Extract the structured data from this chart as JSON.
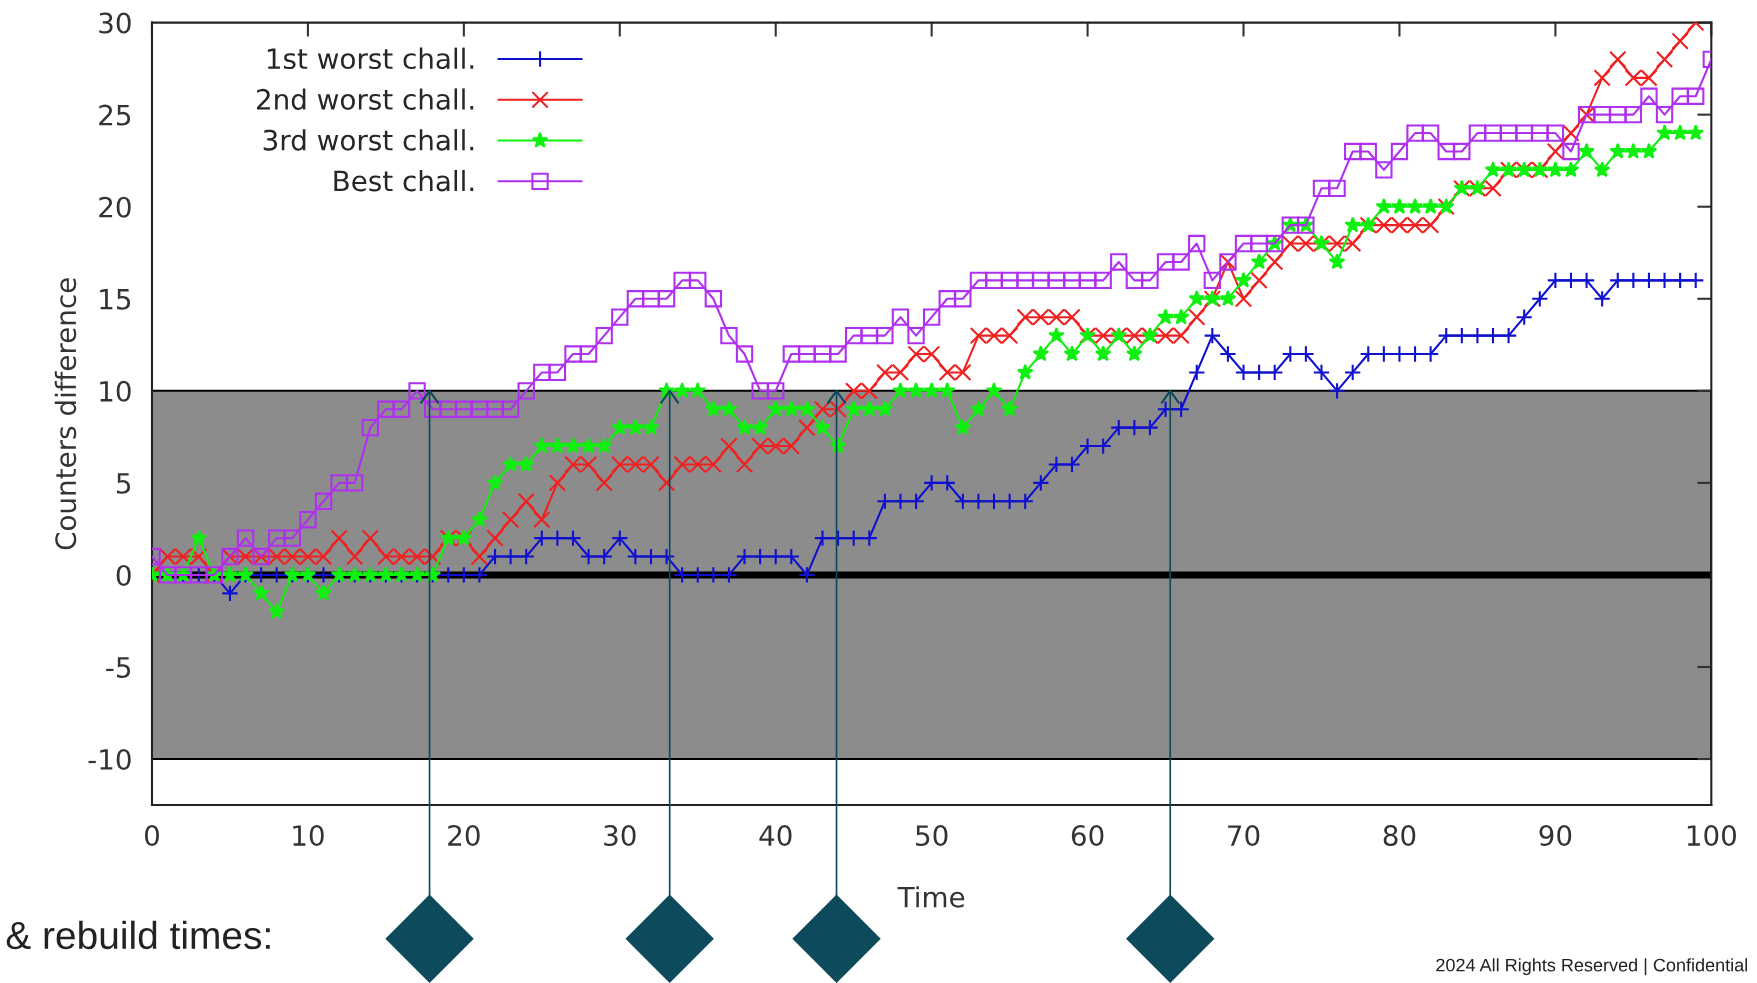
{
  "chart_data": {
    "type": "line",
    "xlabel": "Time",
    "ylabel": "Counters difference",
    "x": [
      0,
      1,
      2,
      3,
      4,
      5,
      6,
      7,
      8,
      9,
      10,
      11,
      12,
      13,
      14,
      15,
      16,
      17,
      18,
      19,
      20,
      21,
      22,
      23,
      24,
      25,
      26,
      27,
      28,
      29,
      30,
      31,
      32,
      33,
      34,
      35,
      36,
      37,
      38,
      39,
      40,
      41,
      42,
      43,
      44,
      45,
      46,
      47,
      48,
      49,
      50,
      51,
      52,
      53,
      54,
      55,
      56,
      57,
      58,
      59,
      60,
      61,
      62,
      63,
      64,
      65,
      66,
      67,
      68,
      69,
      70,
      71,
      72,
      73,
      74,
      75,
      76,
      77,
      78,
      79,
      80,
      81,
      82,
      83,
      84,
      85,
      86,
      87,
      88,
      89,
      90,
      91,
      92,
      93,
      94,
      95,
      96,
      97,
      98,
      99
    ],
    "series": [
      {
        "name": "1st worst chall.",
        "color": "#1010d0",
        "marker": "plus",
        "values": [
          null,
          null,
          0,
          0,
          0,
          -1,
          0,
          0,
          0,
          0,
          0,
          0,
          0,
          0,
          0,
          0,
          0,
          0,
          0,
          0,
          0,
          0,
          1,
          1,
          1,
          2,
          2,
          2,
          1,
          1,
          2,
          1,
          1,
          1,
          0,
          0,
          0,
          0,
          1,
          1,
          1,
          1,
          0,
          2,
          2,
          2,
          2,
          4,
          4,
          4,
          5,
          5,
          4,
          4,
          4,
          4,
          4,
          5,
          6,
          6,
          7,
          7,
          8,
          8,
          8,
          9,
          9,
          11,
          13,
          12,
          11,
          11,
          11,
          12,
          12,
          11,
          10,
          11,
          12,
          12,
          12,
          12,
          12,
          13,
          13,
          13,
          13,
          13,
          14,
          15,
          16,
          16,
          16,
          15,
          16,
          16,
          16,
          16,
          16,
          16
        ]
      },
      {
        "name": "2nd worst chall.",
        "color": "#f02020",
        "marker": "cross",
        "values": [
          0,
          1,
          1,
          1,
          0,
          1,
          1,
          1,
          1,
          1,
          1,
          1,
          2,
          1,
          2,
          1,
          1,
          1,
          1,
          2,
          2,
          1,
          2,
          3,
          4,
          3,
          5,
          6,
          6,
          5,
          6,
          6,
          6,
          5,
          6,
          6,
          6,
          7,
          6,
          7,
          7,
          7,
          8,
          9,
          9,
          10,
          10,
          11,
          11,
          12,
          12,
          11,
          11,
          13,
          13,
          13,
          14,
          14,
          14,
          14,
          13,
          13,
          13,
          13,
          13,
          13,
          13,
          14,
          15,
          17,
          15,
          16,
          17,
          18,
          18,
          18,
          18,
          18,
          19,
          19,
          19,
          19,
          19,
          20,
          21,
          21,
          21,
          22,
          22,
          22,
          23,
          24,
          25,
          27,
          28,
          27,
          27,
          28,
          29,
          30
        ]
      },
      {
        "name": "3rd worst chall.",
        "color": "#10f010",
        "marker": "star",
        "values": [
          0,
          0,
          0,
          2,
          0,
          0,
          0,
          -1,
          -2,
          0,
          0,
          -1,
          0,
          0,
          0,
          0,
          0,
          0,
          0,
          2,
          2,
          3,
          5,
          6,
          6,
          7,
          7,
          7,
          7,
          7,
          8,
          8,
          8,
          10,
          10,
          10,
          9,
          9,
          8,
          8,
          9,
          9,
          9,
          8,
          7,
          9,
          9,
          9,
          10,
          10,
          10,
          10,
          8,
          9,
          10,
          9,
          11,
          12,
          13,
          12,
          13,
          12,
          13,
          12,
          13,
          14,
          14,
          15,
          15,
          15,
          16,
          17,
          18,
          19,
          19,
          18,
          17,
          19,
          19,
          20,
          20,
          20,
          20,
          20,
          21,
          21,
          22,
          22,
          22,
          22,
          22,
          22,
          23,
          22,
          23,
          23,
          23,
          24,
          24,
          24
        ]
      },
      {
        "name": "Best chall.",
        "color": "#b030f0",
        "marker": "square",
        "x": [
          0,
          1,
          2,
          3,
          4,
          5,
          6,
          7,
          8,
          9,
          10,
          11,
          12,
          13,
          14,
          15,
          16,
          17,
          18,
          19,
          20,
          21,
          22,
          23,
          24,
          25,
          26,
          27,
          28,
          29,
          30,
          31,
          32,
          33,
          34,
          35,
          36,
          37,
          38,
          39,
          40,
          41,
          42,
          43,
          44,
          45,
          46,
          47,
          48,
          49,
          50,
          51,
          52,
          53,
          54,
          55,
          56,
          57,
          58,
          59,
          60,
          61,
          62,
          63,
          64,
          65,
          66,
          67,
          68,
          69,
          70,
          71,
          72,
          73,
          74,
          75,
          76,
          77,
          78,
          79,
          80,
          81,
          82,
          83,
          84,
          85,
          86,
          87,
          88,
          89,
          90,
          91,
          92,
          93,
          94,
          95,
          96,
          97,
          98,
          99,
          100
        ],
        "values": [
          1,
          0,
          0,
          0,
          0,
          1,
          2,
          1,
          2,
          2,
          3,
          4,
          5,
          5,
          8,
          9,
          9,
          10,
          9,
          9,
          9,
          9,
          9,
          9,
          10,
          11,
          11,
          12,
          12,
          13,
          14,
          15,
          15,
          15,
          16,
          16,
          15,
          13,
          12,
          10,
          10,
          12,
          12,
          12,
          12,
          13,
          13,
          13,
          14,
          13,
          14,
          15,
          15,
          16,
          16,
          16,
          16,
          16,
          16,
          16,
          16,
          16,
          17,
          16,
          16,
          17,
          17,
          18,
          16,
          17,
          18,
          18,
          18,
          19,
          19,
          21,
          21,
          23,
          23,
          22,
          23,
          24,
          24,
          23,
          23,
          24,
          24,
          24,
          24,
          24,
          24,
          23,
          25,
          25,
          25,
          25,
          26,
          25,
          26,
          26,
          28
        ]
      }
    ],
    "xlim": [
      0,
      100
    ],
    "xticks": [
      0,
      10,
      20,
      30,
      40,
      50,
      60,
      70,
      80,
      90,
      100
    ],
    "ylim": [
      -12.5,
      30
    ],
    "yticks": [
      -10,
      -5,
      0,
      5,
      10,
      15,
      20,
      25,
      30
    ],
    "bands": [
      {
        "axis": "y",
        "from": -10,
        "to": 10,
        "color": "#8c8c8c"
      }
    ],
    "ref_lines": [
      {
        "axis": "y",
        "value": 0,
        "color": "#000000"
      },
      {
        "axis": "x",
        "value": 17.8,
        "color": "#0d4a5c"
      },
      {
        "axis": "x",
        "value": 33.2,
        "color": "#0d4a5c"
      },
      {
        "axis": "x",
        "value": 43.9,
        "color": "#0d4a5c"
      },
      {
        "axis": "x",
        "value": 65.3,
        "color": "#0d4a5c"
      }
    ],
    "legend": "top left",
    "grid": false,
    "line_style": "solid",
    "annotations": [
      "& rebuild times:",
      "2024 All Rights Reserved | Confidential"
    ]
  }
}
